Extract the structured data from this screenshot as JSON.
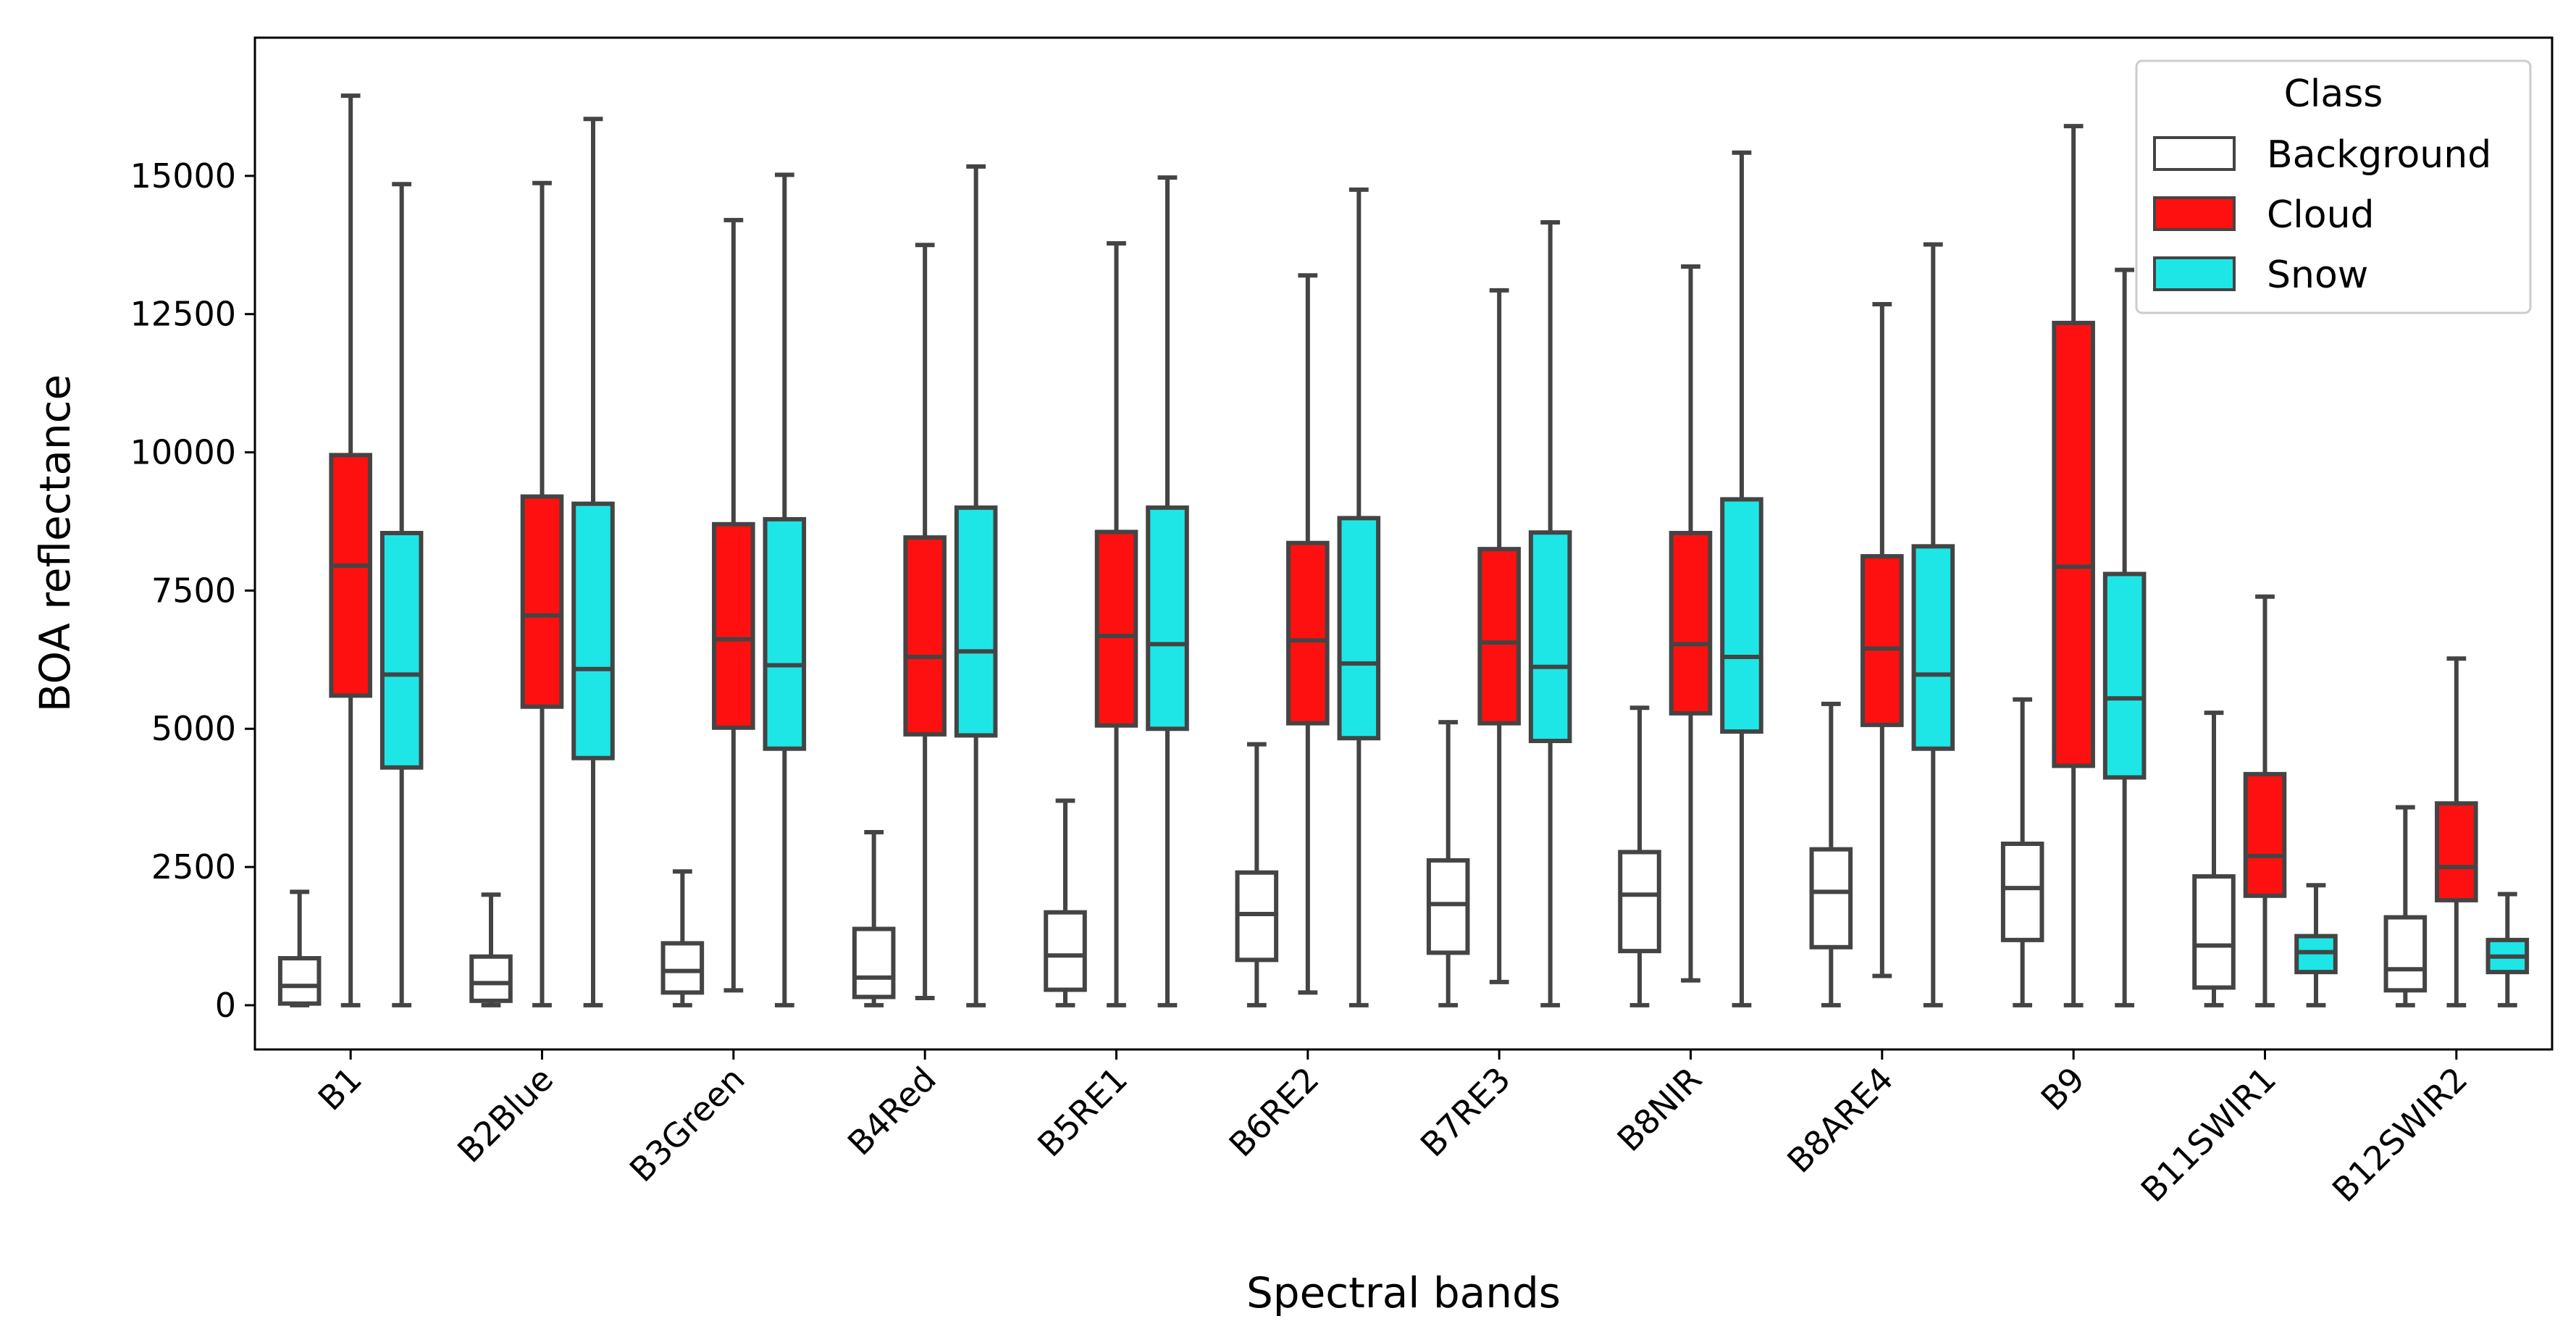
{
  "chart_data": {
    "type": "boxplot",
    "title": "",
    "xlabel": "Spectral bands",
    "ylabel": "BOA reflectance",
    "ylim": [
      -800,
      17500
    ],
    "yticks": [
      0,
      2500,
      5000,
      7500,
      10000,
      12500,
      15000
    ],
    "ytick_labels": [
      "0",
      "2500",
      "5000",
      "7500",
      "10000",
      "12500",
      "15000"
    ],
    "categories": [
      "B1",
      "B2Blue",
      "B3Green",
      "B4Red",
      "B5RE1",
      "B6RE2",
      "B7RE3",
      "B8NIR",
      "B8ARE4",
      "B9",
      "B11SWIR1",
      "B12SWIR2"
    ],
    "legend": {
      "title": "Class",
      "position": "top-right",
      "entries": [
        "Background",
        "Cloud",
        "Snow"
      ]
    },
    "series": [
      {
        "name": "Background",
        "color": "#ffffff",
        "boxes": [
          {
            "whislo": 0,
            "q1": 30,
            "med": 350,
            "q3": 850,
            "whishi": 2050
          },
          {
            "whislo": 0,
            "q1": 80,
            "med": 400,
            "q3": 880,
            "whishi": 2000
          },
          {
            "whislo": 0,
            "q1": 230,
            "med": 620,
            "q3": 1120,
            "whishi": 2420
          },
          {
            "whislo": 0,
            "q1": 150,
            "med": 500,
            "q3": 1380,
            "whishi": 3130
          },
          {
            "whislo": 0,
            "q1": 280,
            "med": 900,
            "q3": 1680,
            "whishi": 3700
          },
          {
            "whislo": 0,
            "q1": 820,
            "med": 1650,
            "q3": 2400,
            "whishi": 4720
          },
          {
            "whislo": 0,
            "q1": 950,
            "med": 1830,
            "q3": 2620,
            "whishi": 5120
          },
          {
            "whislo": 0,
            "q1": 980,
            "med": 2000,
            "q3": 2770,
            "whishi": 5380
          },
          {
            "whislo": 0,
            "q1": 1050,
            "med": 2050,
            "q3": 2820,
            "whishi": 5450
          },
          {
            "whislo": 0,
            "q1": 1180,
            "med": 2120,
            "q3": 2920,
            "whishi": 5530
          },
          {
            "whislo": 0,
            "q1": 320,
            "med": 1080,
            "q3": 2330,
            "whishi": 5290
          },
          {
            "whislo": 0,
            "q1": 270,
            "med": 650,
            "q3": 1590,
            "whishi": 3580
          }
        ]
      },
      {
        "name": "Cloud",
        "color": "#ff1010",
        "boxes": [
          {
            "whislo": 0,
            "q1": 5600,
            "med": 7950,
            "q3": 9950,
            "whishi": 16450
          },
          {
            "whislo": 0,
            "q1": 5400,
            "med": 7050,
            "q3": 9200,
            "whishi": 14870
          },
          {
            "whislo": 270,
            "q1": 5020,
            "med": 6620,
            "q3": 8700,
            "whishi": 14200
          },
          {
            "whislo": 130,
            "q1": 4900,
            "med": 6300,
            "q3": 8460,
            "whishi": 13750
          },
          {
            "whislo": 0,
            "q1": 5060,
            "med": 6680,
            "q3": 8560,
            "whishi": 13780
          },
          {
            "whislo": 230,
            "q1": 5100,
            "med": 6600,
            "q3": 8360,
            "whishi": 13200
          },
          {
            "whislo": 420,
            "q1": 5100,
            "med": 6560,
            "q3": 8250,
            "whishi": 12930
          },
          {
            "whislo": 450,
            "q1": 5280,
            "med": 6530,
            "q3": 8540,
            "whishi": 13360
          },
          {
            "whislo": 530,
            "q1": 5070,
            "med": 6450,
            "q3": 8120,
            "whishi": 12680
          },
          {
            "whislo": 0,
            "q1": 4330,
            "med": 7930,
            "q3": 12340,
            "whishi": 15900
          },
          {
            "whislo": 0,
            "q1": 1980,
            "med": 2700,
            "q3": 4180,
            "whishi": 7390
          },
          {
            "whislo": 0,
            "q1": 1900,
            "med": 2500,
            "q3": 3650,
            "whishi": 6270
          }
        ]
      },
      {
        "name": "Snow",
        "color": "#1ee6e6",
        "boxes": [
          {
            "whislo": 0,
            "q1": 4300,
            "med": 5980,
            "q3": 8540,
            "whishi": 14850
          },
          {
            "whislo": 0,
            "q1": 4470,
            "med": 6080,
            "q3": 9070,
            "whishi": 16030
          },
          {
            "whislo": 0,
            "q1": 4640,
            "med": 6150,
            "q3": 8790,
            "whishi": 15020
          },
          {
            "whislo": 0,
            "q1": 4880,
            "med": 6400,
            "q3": 9000,
            "whishi": 15170
          },
          {
            "whislo": 0,
            "q1": 5000,
            "med": 6530,
            "q3": 9000,
            "whishi": 14970
          },
          {
            "whislo": 0,
            "q1": 4830,
            "med": 6180,
            "q3": 8810,
            "whishi": 14750
          },
          {
            "whislo": 0,
            "q1": 4780,
            "med": 6120,
            "q3": 8550,
            "whishi": 14160
          },
          {
            "whislo": 0,
            "q1": 4950,
            "med": 6300,
            "q3": 9150,
            "whishi": 15420
          },
          {
            "whislo": 0,
            "q1": 4640,
            "med": 5980,
            "q3": 8300,
            "whishi": 13760
          },
          {
            "whislo": 0,
            "q1": 4120,
            "med": 5550,
            "q3": 7800,
            "whishi": 13300
          },
          {
            "whislo": 0,
            "q1": 600,
            "med": 960,
            "q3": 1250,
            "whishi": 2170
          },
          {
            "whislo": 0,
            "q1": 600,
            "med": 880,
            "q3": 1180,
            "whishi": 2010
          }
        ]
      }
    ],
    "line_color": "#444444"
  }
}
